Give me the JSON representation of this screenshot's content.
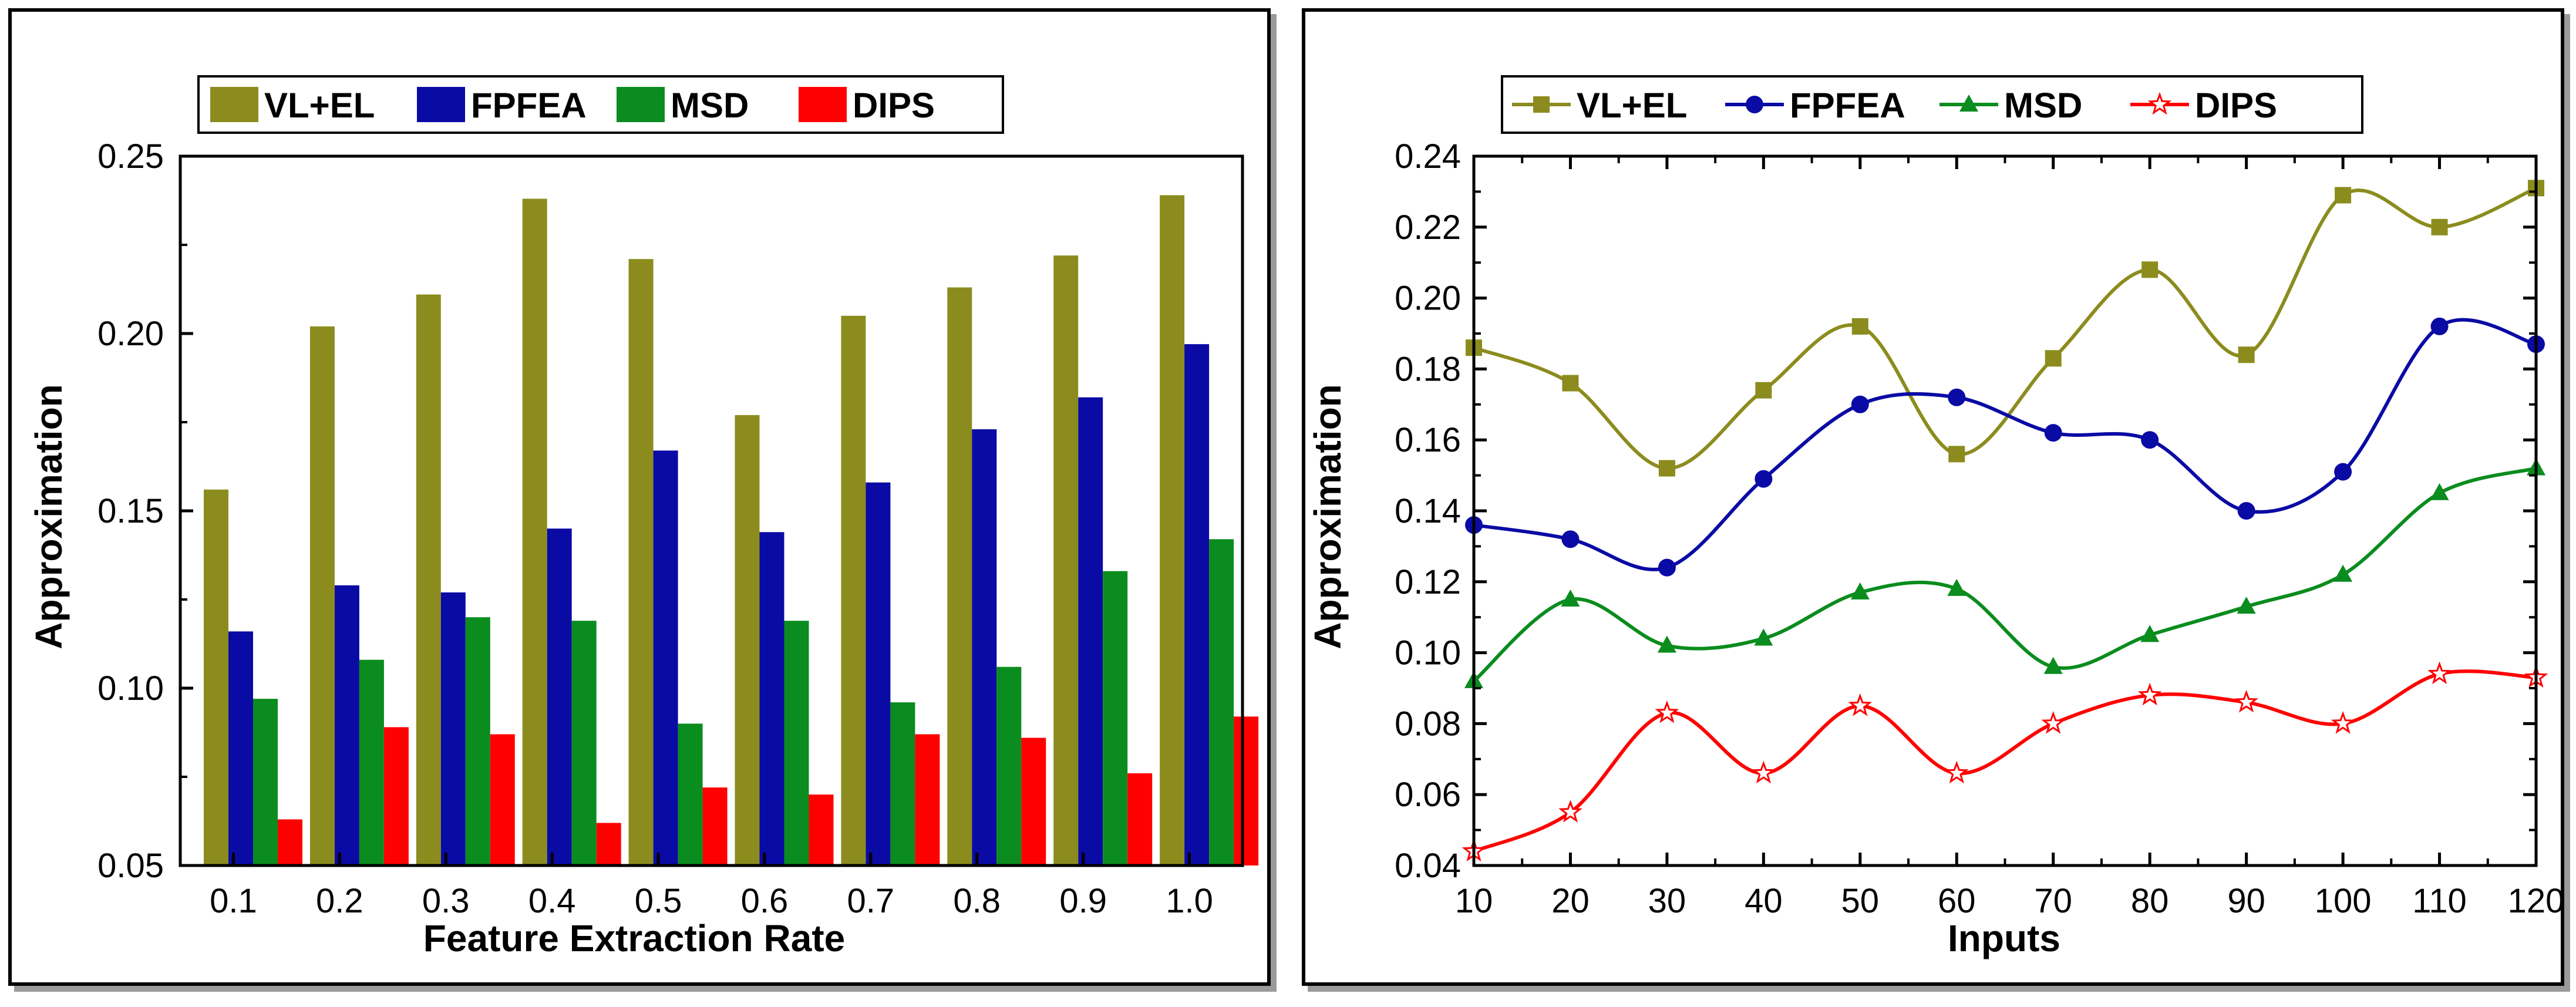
{
  "chart_data": [
    {
      "type": "bar",
      "xlabel": "Feature Extraction Rate",
      "ylabel": "Approximation",
      "ylim": [
        0.05,
        0.25
      ],
      "yticks": [
        "0.05",
        "0.10",
        "0.15",
        "0.20",
        "0.25"
      ],
      "yticks_values": [
        0.05,
        0.1,
        0.15,
        0.2,
        0.25
      ],
      "categories": [
        "0.1",
        "0.2",
        "0.3",
        "0.4",
        "0.5",
        "0.6",
        "0.7",
        "0.8",
        "0.9",
        "1.0"
      ],
      "legend_position": "top",
      "series": [
        {
          "name": "VL+EL",
          "color": "#8c8c1e",
          "values": [
            0.156,
            0.202,
            0.211,
            0.238,
            0.221,
            0.177,
            0.205,
            0.213,
            0.222,
            0.239
          ]
        },
        {
          "name": "FPFEA",
          "color": "#0a0aa5",
          "values": [
            0.116,
            0.129,
            0.127,
            0.145,
            0.167,
            0.144,
            0.158,
            0.173,
            0.182,
            0.197
          ]
        },
        {
          "name": "MSD",
          "color": "#0a8c1e",
          "values": [
            0.097,
            0.108,
            0.12,
            0.119,
            0.09,
            0.119,
            0.096,
            0.106,
            0.133,
            0.142
          ]
        },
        {
          "name": "DIPS",
          "color": "#ff0000",
          "values": [
            0.063,
            0.089,
            0.087,
            0.062,
            0.072,
            0.07,
            0.087,
            0.086,
            0.076,
            0.092
          ]
        }
      ]
    },
    {
      "type": "line",
      "xlabel": "Inputs",
      "ylabel": "Approximation",
      "ylim": [
        0.04,
        0.24
      ],
      "xlim": [
        10,
        120
      ],
      "yticks": [
        "0.04",
        "0.06",
        "0.08",
        "0.10",
        "0.12",
        "0.14",
        "0.16",
        "0.18",
        "0.20",
        "0.22",
        "0.24"
      ],
      "yticks_values": [
        0.04,
        0.06,
        0.08,
        0.1,
        0.12,
        0.14,
        0.16,
        0.18,
        0.2,
        0.22,
        0.24
      ],
      "x": [
        10,
        20,
        30,
        40,
        50,
        60,
        70,
        80,
        90,
        100,
        110,
        120
      ],
      "xticks": [
        "10",
        "20",
        "30",
        "40",
        "50",
        "60",
        "70",
        "80",
        "90",
        "100",
        "110",
        "120"
      ],
      "legend_position": "top",
      "series": [
        {
          "name": "VL+EL",
          "color": "#8c8c1e",
          "marker": "square",
          "values": [
            0.186,
            0.176,
            0.152,
            0.174,
            0.192,
            0.156,
            0.183,
            0.208,
            0.184,
            0.229,
            0.22,
            0.231
          ]
        },
        {
          "name": "FPFEA",
          "color": "#0a0aa5",
          "marker": "circle",
          "values": [
            0.136,
            0.132,
            0.124,
            0.149,
            0.17,
            0.172,
            0.162,
            0.16,
            0.14,
            0.151,
            0.192,
            0.187
          ]
        },
        {
          "name": "MSD",
          "color": "#0a8c1e",
          "marker": "triangle",
          "values": [
            0.092,
            0.115,
            0.102,
            0.104,
            0.117,
            0.118,
            0.096,
            0.105,
            0.113,
            0.122,
            0.145,
            0.152
          ]
        },
        {
          "name": "DIPS",
          "color": "#ff0000",
          "marker": "star",
          "values": [
            0.044,
            0.055,
            0.083,
            0.066,
            0.085,
            0.066,
            0.08,
            0.088,
            0.086,
            0.08,
            0.094,
            0.093
          ]
        }
      ]
    }
  ]
}
